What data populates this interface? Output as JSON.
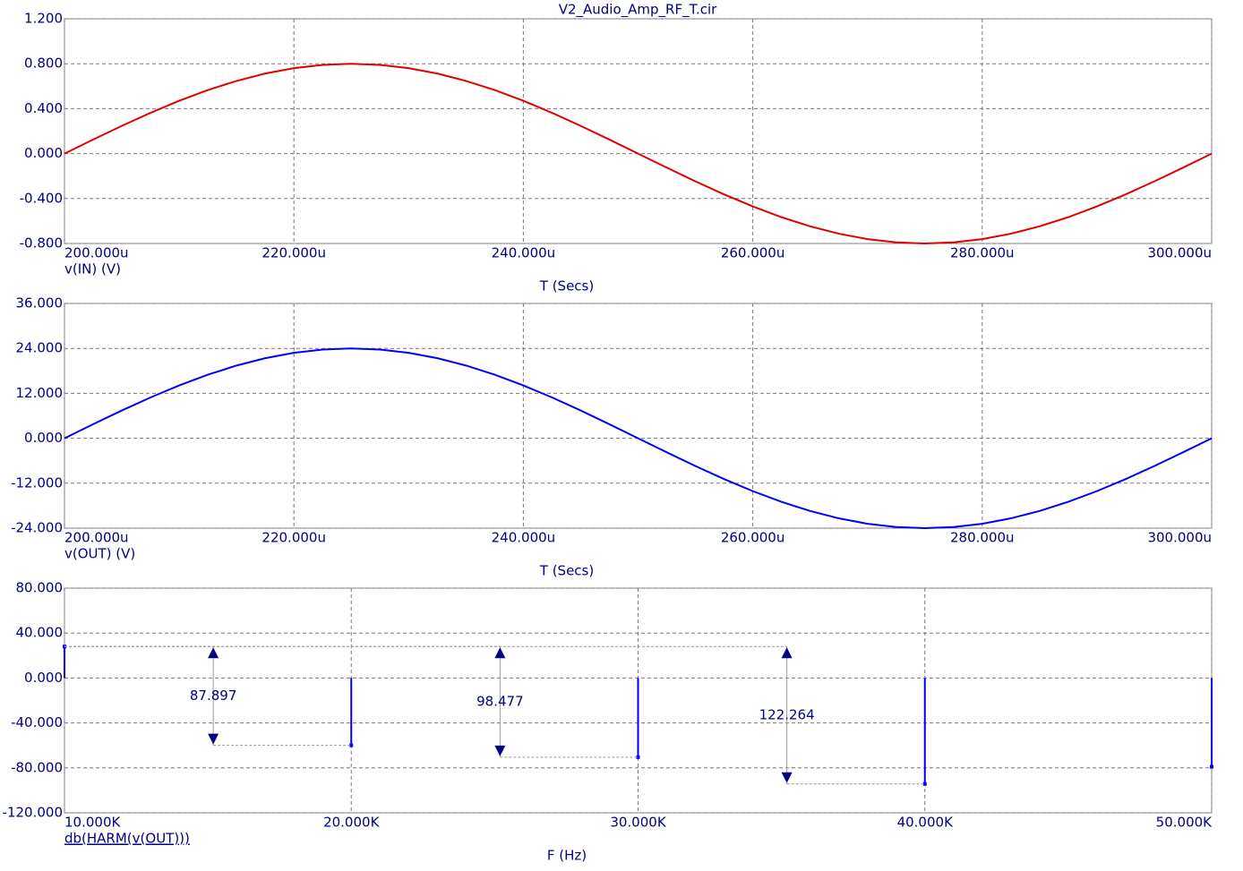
{
  "chart_data": [
    {
      "type": "line",
      "title": "V2_Audio_Amp_RF_T.cir",
      "xlabel": "T (Secs)",
      "x": [
        0.0002,
        0.0002025,
        0.000205,
        0.0002075,
        0.00021,
        0.0002125,
        0.000215,
        0.0002175,
        0.00022,
        0.0002225,
        0.000225,
        0.0002275,
        0.00023,
        0.0002325,
        0.000235,
        0.0002375,
        0.00024,
        0.0002425,
        0.000245,
        0.0002475,
        0.00025,
        0.0002525,
        0.000255,
        0.0002575,
        0.00026,
        0.0002625,
        0.000265,
        0.0002675,
        0.00027,
        0.0002725,
        0.000275,
        0.0002775,
        0.00028,
        0.0002825,
        0.000285,
        0.0002875,
        0.00029,
        0.0002925,
        0.000295,
        0.0002975,
        0.0003
      ],
      "series": [
        {
          "name": "v(IN) (V)",
          "color": "#e00000",
          "values": [
            0,
            0.125,
            0.247,
            0.363,
            0.47,
            0.566,
            0.647,
            0.713,
            0.761,
            0.79,
            0.8,
            0.79,
            0.761,
            0.713,
            0.647,
            0.566,
            0.47,
            0.363,
            0.247,
            0.125,
            0,
            -0.125,
            -0.247,
            -0.363,
            -0.47,
            -0.566,
            -0.647,
            -0.713,
            -0.761,
            -0.79,
            -0.8,
            -0.79,
            -0.761,
            -0.713,
            -0.647,
            -0.566,
            -0.47,
            -0.363,
            -0.247,
            -0.125,
            0
          ]
        }
      ],
      "xlim": [
        0.0002,
        0.0003
      ],
      "xticks": [
        {
          "value": 0.0002,
          "label": "200.000u"
        },
        {
          "value": 0.00022,
          "label": "220.000u"
        },
        {
          "value": 0.00024,
          "label": "240.000u"
        },
        {
          "value": 0.00026,
          "label": "260.000u"
        },
        {
          "value": 0.00028,
          "label": "280.000u"
        },
        {
          "value": 0.0003,
          "label": "300.000u"
        }
      ],
      "ylim": [
        -0.8,
        1.2
      ],
      "yticks": [
        {
          "value": -0.8,
          "label": "-0.800"
        },
        {
          "value": -0.4,
          "label": "-0.400"
        },
        {
          "value": 0,
          "label": "0.000"
        },
        {
          "value": 0.4,
          "label": "0.400"
        },
        {
          "value": 0.8,
          "label": "0.800"
        },
        {
          "value": 1.2,
          "label": "1.200"
        }
      ],
      "grid": true
    },
    {
      "type": "line",
      "xlabel": "T (Secs)",
      "x": [
        0.0002,
        0.0002025,
        0.000205,
        0.0002075,
        0.00021,
        0.0002125,
        0.000215,
        0.0002175,
        0.00022,
        0.0002225,
        0.000225,
        0.0002275,
        0.00023,
        0.0002325,
        0.000235,
        0.0002375,
        0.00024,
        0.0002425,
        0.000245,
        0.0002475,
        0.00025,
        0.0002525,
        0.000255,
        0.0002575,
        0.00026,
        0.0002625,
        0.000265,
        0.0002675,
        0.00027,
        0.0002725,
        0.000275,
        0.0002775,
        0.00028,
        0.0002825,
        0.000285,
        0.0002875,
        0.00029,
        0.0002925,
        0.000295,
        0.0002975,
        0.0003
      ],
      "series": [
        {
          "name": "v(OUT) (V)",
          "color": "#0000ff",
          "values": [
            0,
            3.75,
            7.42,
            10.9,
            14.11,
            16.97,
            19.42,
            21.38,
            22.83,
            23.7,
            24,
            23.7,
            22.83,
            21.38,
            19.42,
            16.97,
            14.11,
            10.9,
            7.42,
            3.75,
            0,
            -3.75,
            -7.42,
            -10.9,
            -14.11,
            -16.97,
            -19.42,
            -21.38,
            -22.83,
            -23.7,
            -24,
            -23.7,
            -22.83,
            -21.38,
            -19.42,
            -16.97,
            -14.11,
            -10.9,
            -7.42,
            -3.75,
            0
          ]
        }
      ],
      "xlim": [
        0.0002,
        0.0003
      ],
      "xticks": [
        {
          "value": 0.0002,
          "label": "200.000u"
        },
        {
          "value": 0.00022,
          "label": "220.000u"
        },
        {
          "value": 0.00024,
          "label": "240.000u"
        },
        {
          "value": 0.00026,
          "label": "260.000u"
        },
        {
          "value": 0.00028,
          "label": "280.000u"
        },
        {
          "value": 0.0003,
          "label": "300.000u"
        }
      ],
      "ylim": [
        -24,
        36
      ],
      "yticks": [
        {
          "value": -24,
          "label": "-24.000"
        },
        {
          "value": -12,
          "label": "-12.000"
        },
        {
          "value": 0,
          "label": "0.000"
        },
        {
          "value": 12,
          "label": "12.000"
        },
        {
          "value": 24,
          "label": "24.000"
        },
        {
          "value": 36,
          "label": "36.000"
        }
      ],
      "grid": true
    },
    {
      "type": "stem",
      "xlabel": "F (Hz)",
      "x": [
        10000,
        20000,
        30000,
        40000,
        50000
      ],
      "series": [
        {
          "name": "db(HARM(v(OUT)))",
          "color": "#0000ff",
          "values": [
            28,
            -59.9,
            -70.5,
            -94.3,
            -79
          ]
        }
      ],
      "measurements": [
        87.897,
        98.477,
        122.264
      ],
      "xlim": [
        10000,
        50000
      ],
      "xticks": [
        {
          "value": 10000,
          "label": "10.000K"
        },
        {
          "value": 20000,
          "label": "20.000K"
        },
        {
          "value": 30000,
          "label": "30.000K"
        },
        {
          "value": 40000,
          "label": "40.000K"
        },
        {
          "value": 50000,
          "label": "50.000K"
        }
      ],
      "ylim": [
        -120,
        80
      ],
      "yticks": [
        {
          "value": -120,
          "label": "-120.000"
        },
        {
          "value": -80,
          "label": "-80.000"
        },
        {
          "value": -40,
          "label": "-40.000"
        },
        {
          "value": 0,
          "label": "0.000"
        },
        {
          "value": 40,
          "label": "40.000"
        },
        {
          "value": 80,
          "label": "80.000"
        }
      ],
      "grid": true
    }
  ]
}
